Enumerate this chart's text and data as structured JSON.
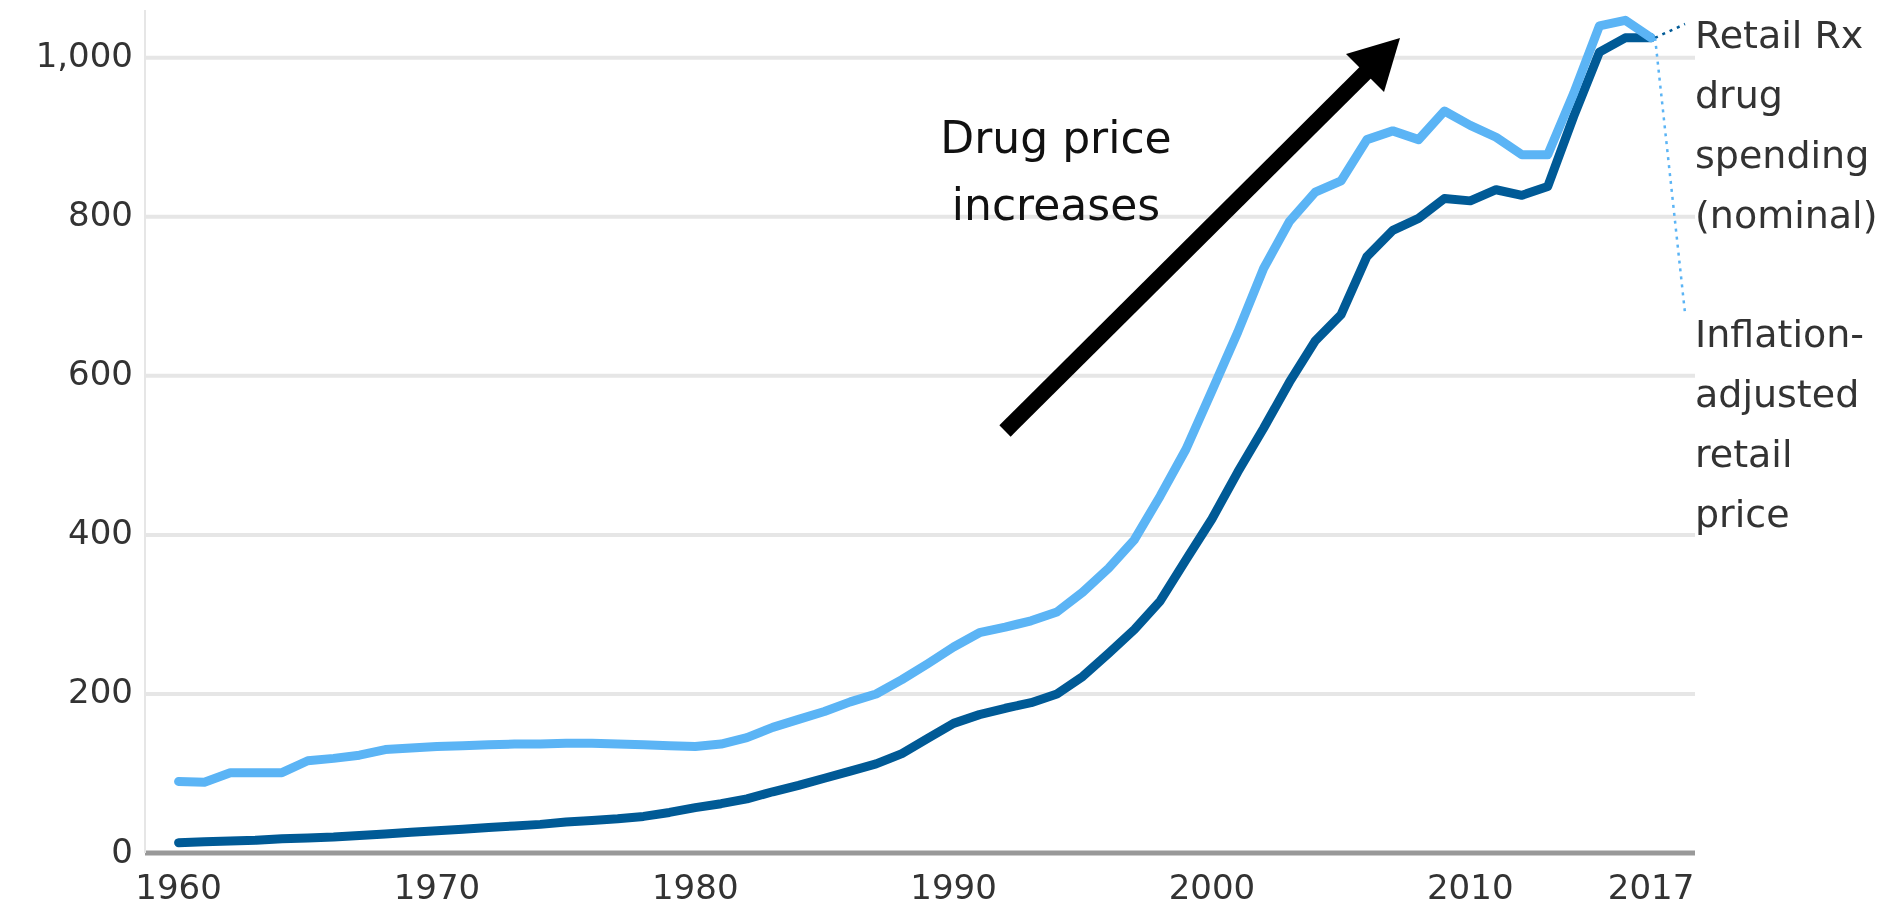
{
  "chart_data": {
    "type": "line",
    "x": [
      1960,
      1961,
      1962,
      1963,
      1964,
      1965,
      1966,
      1967,
      1968,
      1969,
      1970,
      1971,
      1972,
      1973,
      1974,
      1975,
      1976,
      1977,
      1978,
      1979,
      1980,
      1981,
      1982,
      1983,
      1984,
      1985,
      1986,
      1987,
      1988,
      1989,
      1990,
      1991,
      1992,
      1993,
      1994,
      1995,
      1996,
      1997,
      1998,
      1999,
      2000,
      2001,
      2002,
      2003,
      2004,
      2005,
      2006,
      2007,
      2008,
      2009,
      2010,
      2011,
      2012,
      2013,
      2014,
      2015,
      2016,
      2017
    ],
    "series": [
      {
        "name": "Retail Rx drug spending (nominal)",
        "color": "#005a96",
        "values": [
          13,
          14,
          15,
          16,
          18,
          19,
          20,
          22,
          24,
          26,
          28,
          30,
          32,
          34,
          36,
          39,
          41,
          43,
          46,
          51,
          57,
          62,
          68,
          77,
          85,
          94,
          103,
          112,
          125,
          144,
          163,
          174,
          182,
          189,
          200,
          222,
          251,
          281,
          317,
          369,
          420,
          479,
          534,
          592,
          644,
          677,
          750,
          783,
          798,
          823,
          820,
          834,
          827,
          838,
          926,
          1007,
          1025,
          1025
        ]
      },
      {
        "name": "Inflation-adjusted retail price",
        "color": "#5bb4f5",
        "values": [
          90,
          89,
          101,
          101,
          101,
          116,
          119,
          123,
          130,
          132,
          134,
          135,
          136,
          137,
          137,
          138,
          138,
          137,
          136,
          135,
          134,
          137,
          145,
          158,
          168,
          178,
          190,
          200,
          218,
          238,
          259,
          277,
          284,
          292,
          303,
          328,
          358,
          394,
          449,
          508,
          581,
          655,
          735,
          794,
          831,
          845,
          897,
          908,
          897,
          933,
          915,
          900,
          878,
          878,
          955,
          1040,
          1047,
          1025
        ]
      }
    ],
    "xlim": [
      1958.7,
      2018.7
    ],
    "xticks": [
      1960,
      1970,
      1980,
      1990,
      2000,
      2010,
      2017
    ],
    "ylim": [
      0,
      1060
    ],
    "yticks": [
      0,
      200,
      400,
      600,
      800,
      {
        "value": 1000,
        "label": "1,000"
      }
    ],
    "grid": "y",
    "legend": "right",
    "line_style": "solid",
    "marker": "none",
    "annotations": [
      "Drug price increases"
    ]
  }
}
